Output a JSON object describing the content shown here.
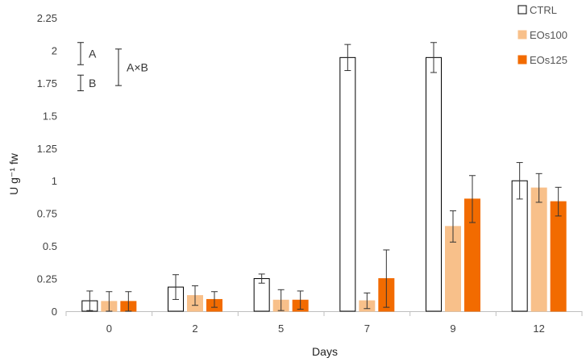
{
  "chart_data": {
    "type": "bar",
    "xlabel": "Days",
    "ylabel": "U g⁻¹ fw",
    "ylim": [
      0,
      2.25
    ],
    "yticks": [
      "0",
      "0.25",
      "0.5",
      "0.75",
      "1",
      "1.25",
      "1.5",
      "1.75",
      "2",
      "2.25"
    ],
    "categories": [
      "0",
      "2",
      "5",
      "7",
      "9",
      "12"
    ],
    "legend_position": "top-right",
    "grid": false,
    "series": [
      {
        "name": "CTRL",
        "fill": "#ffffff",
        "stroke": "#000000",
        "values": [
          0.08,
          0.185,
          0.25,
          1.945,
          1.945,
          1.0
        ],
        "errors": [
          0.075,
          0.095,
          0.035,
          0.1,
          0.115,
          0.14
        ]
      },
      {
        "name": "EOs100",
        "fill": "#f8c08a",
        "stroke": "#f8c08a",
        "values": [
          0.075,
          0.12,
          0.085,
          0.08,
          0.65,
          0.945
        ],
        "errors": [
          0.075,
          0.075,
          0.08,
          0.06,
          0.12,
          0.11
        ]
      },
      {
        "name": "EOs125",
        "fill": "#f26b00",
        "stroke": "#f26b00",
        "values": [
          0.075,
          0.09,
          0.085,
          0.25,
          0.86,
          0.84
        ],
        "errors": [
          0.075,
          0.06,
          0.07,
          0.22,
          0.18,
          0.11
        ]
      }
    ],
    "significance": [
      {
        "label": "A",
        "low": 1.89,
        "high": 2.06
      },
      {
        "label": "B",
        "low": 1.69,
        "high": 1.81
      },
      {
        "label": "A×B",
        "low": 1.73,
        "high": 2.01
      }
    ]
  }
}
